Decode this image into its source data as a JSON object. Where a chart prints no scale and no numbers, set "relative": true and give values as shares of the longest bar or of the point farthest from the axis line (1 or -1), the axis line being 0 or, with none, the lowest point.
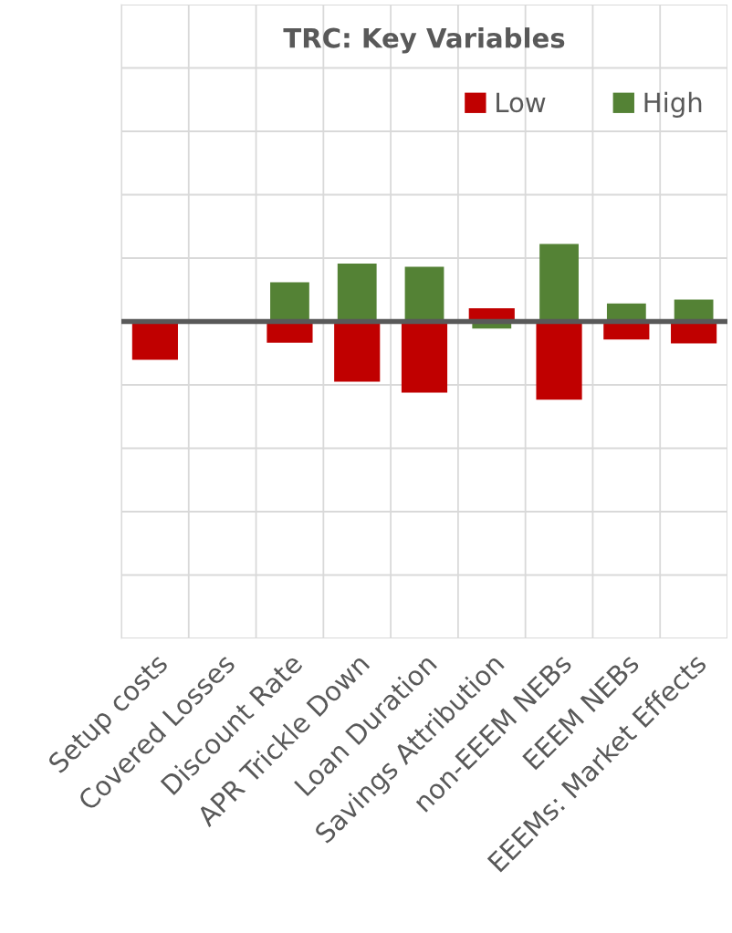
{
  "chart_data": {
    "type": "bar",
    "title": "TRC: Key Variables",
    "relative": true,
    "categories": [
      "Setup costs",
      "Covered Losses",
      "Discount Rate",
      "APR Trickle Down",
      "Loan Duration",
      "Savings Attribution",
      "non-EEEM NEBs",
      "EEEM NEBs",
      "EEEMs: Market Effects"
    ],
    "series": [
      {
        "name": "Low",
        "color": "#c00000",
        "values": [
          -0.49,
          null,
          -0.27,
          -0.77,
          -0.91,
          0.17,
          -1,
          -0.23,
          -0.28
        ]
      },
      {
        "name": "High",
        "color": "#548235",
        "values": [
          null,
          null,
          0.5,
          0.74,
          0.7,
          -0.09,
          0.99,
          0.23,
          0.28
        ]
      }
    ],
    "grid": true,
    "legend": "top right",
    "tick_labels": "x"
  }
}
